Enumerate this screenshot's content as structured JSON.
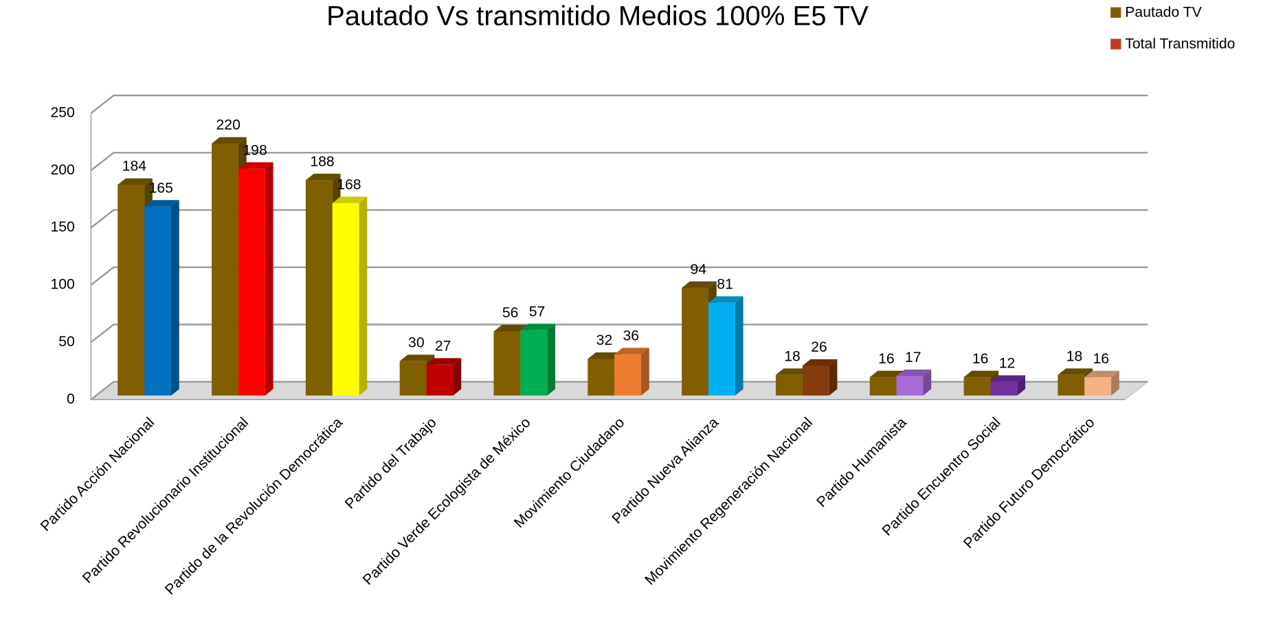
{
  "chart_data": {
    "type": "bar",
    "title": "Pautado Vs transmitido Medios 100% E5 TV",
    "categories": [
      "Partido Acción Nacional",
      "Partido Revolucionario Institucional",
      "Partido de la Revolución Democrática",
      "Partido del Trabajo",
      "Partido Verde Ecologista de México",
      "Movimiento Ciudadano",
      "Partido Nueva Alianza",
      "Movimiento Regeneración Nacional",
      "Partido Humanista",
      "Partido Encuentro Social",
      "Partido Futuro Democrático"
    ],
    "series": [
      {
        "name": "Pautado TV",
        "color": "#7f5f00",
        "values": [
          184,
          220,
          188,
          30,
          56,
          32,
          94,
          18,
          16,
          16,
          18
        ]
      },
      {
        "name": "Total Transmitido",
        "color": "#c0392b",
        "colors": [
          "#0070c0",
          "#ff0000",
          "#ffff00",
          "#c00000",
          "#00b050",
          "#ed7d31",
          "#00b0f0",
          "#843c0c",
          "#a66bd6",
          "#7030a0",
          "#f4b183"
        ],
        "values": [
          165,
          198,
          168,
          27,
          57,
          36,
          81,
          26,
          17,
          12,
          16
        ]
      }
    ],
    "ylim": [
      0,
      250
    ],
    "yticks": [
      0,
      50,
      100,
      150,
      200,
      250
    ],
    "grid": true,
    "legend": "top-right"
  }
}
